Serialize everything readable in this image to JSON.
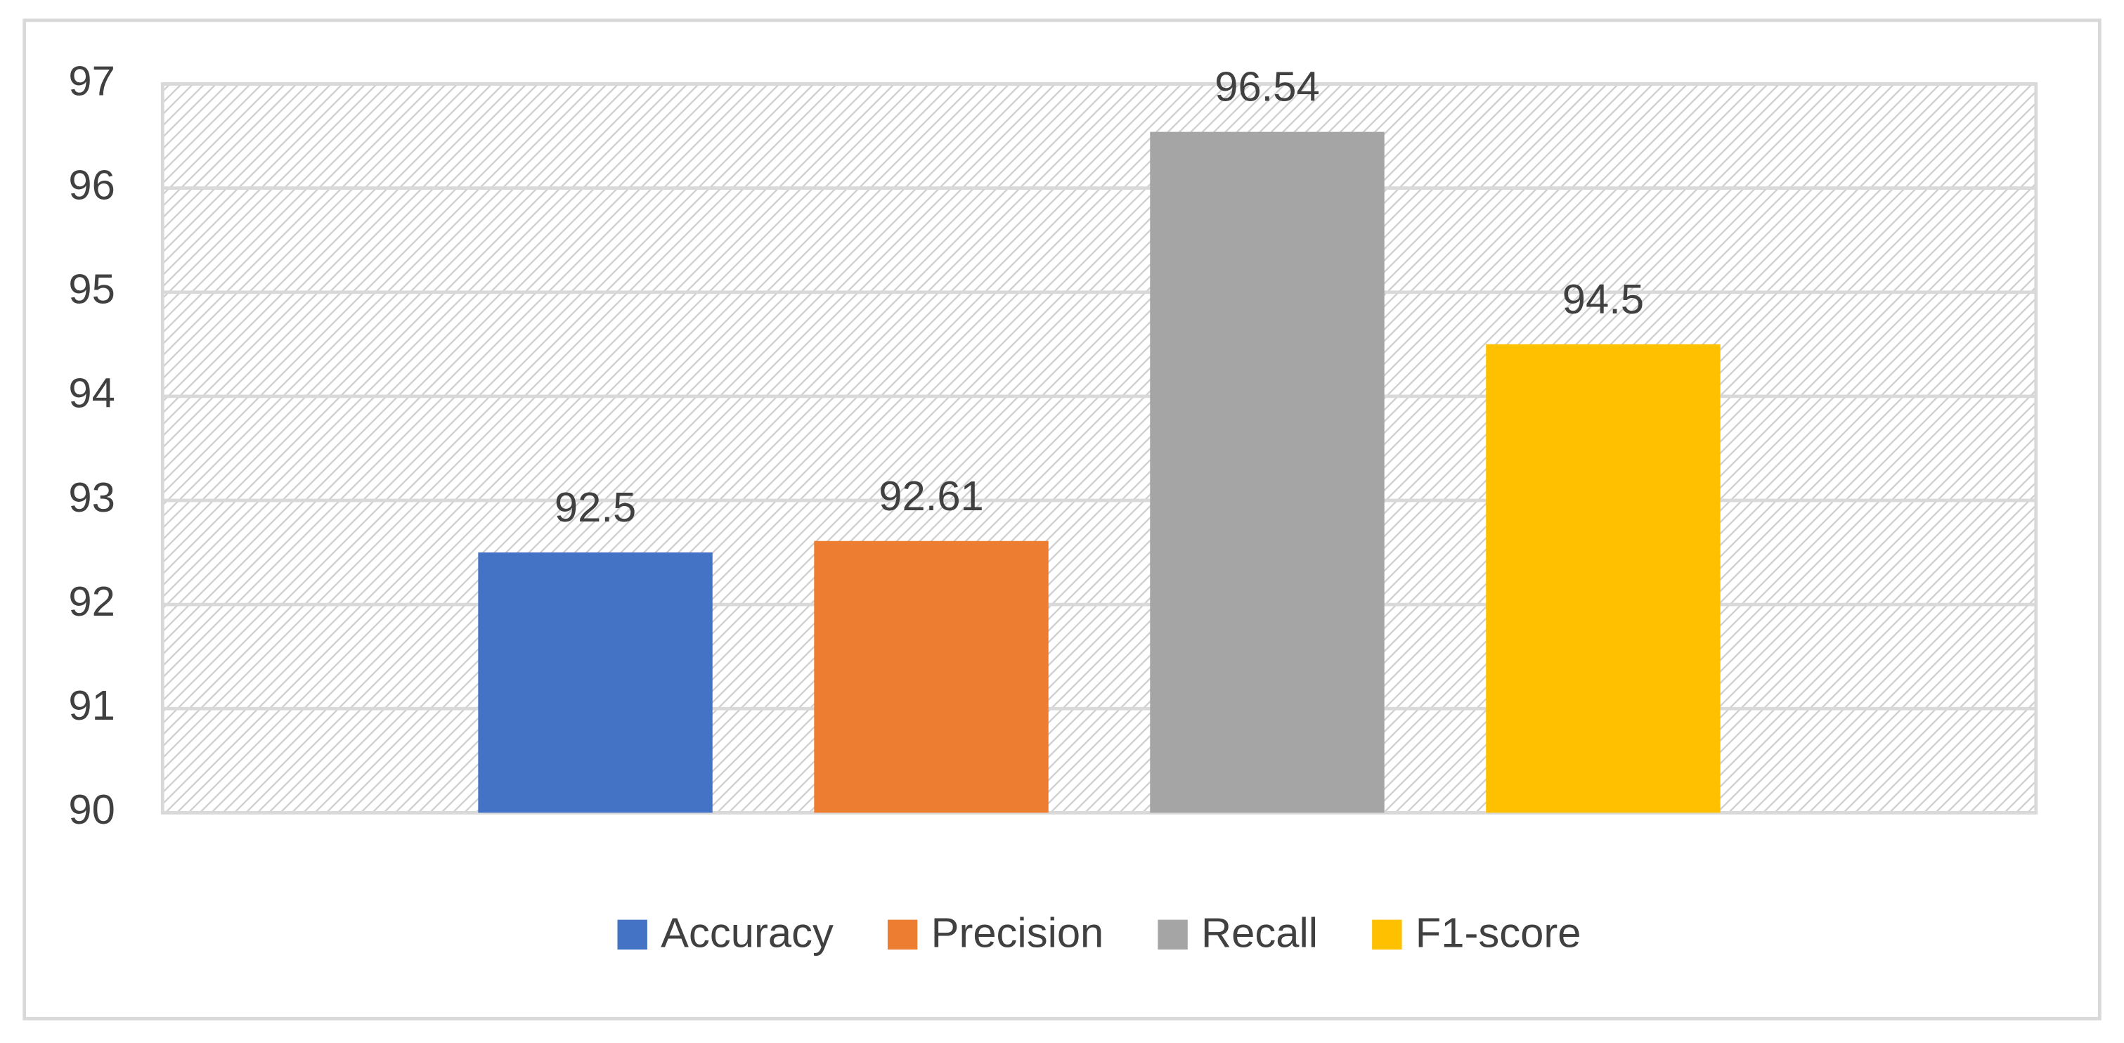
{
  "chart_data": {
    "type": "bar",
    "categories": [
      null
    ],
    "series": [
      {
        "name": "Accuracy",
        "color": "#4472c4",
        "values": [
          92.5
        ]
      },
      {
        "name": "Precision",
        "color": "#ed7d31",
        "values": [
          92.61
        ]
      },
      {
        "name": "Recall",
        "color": "#a5a5a5",
        "values": [
          96.54
        ]
      },
      {
        "name": "F1-score",
        "color": "#ffc000",
        "values": [
          94.5
        ]
      }
    ],
    "ylim": [
      90,
      97
    ],
    "yticks": [
      90,
      91,
      92,
      93,
      94,
      95,
      96,
      97
    ],
    "grid": true,
    "legend": "bottom",
    "data_labels": true
  }
}
